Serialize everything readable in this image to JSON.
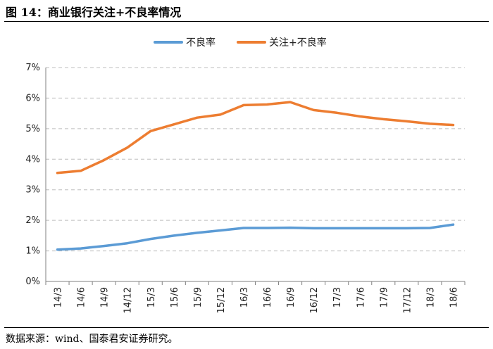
{
  "figure": {
    "title": "图 14：商业银行关注+不良率情况",
    "source": "数据来源：wind、国泰君安证券研究。"
  },
  "chart_data": {
    "type": "line",
    "title": "",
    "xlabel": "",
    "ylabel": "",
    "ylim": [
      0,
      7
    ],
    "y_ticks": [
      "0%",
      "1%",
      "2%",
      "3%",
      "4%",
      "5%",
      "6%",
      "7%"
    ],
    "grid": true,
    "legend_position": "top-center",
    "categories": [
      "14/3",
      "14/6",
      "14/9",
      "14/12",
      "15/3",
      "15/6",
      "15/9",
      "15/12",
      "16/3",
      "16/6",
      "16/9",
      "16/12",
      "17/3",
      "17/6",
      "17/9",
      "17/12",
      "18/3",
      "18/6"
    ],
    "series": [
      {
        "name": "不良率",
        "color": "#5b9bd5",
        "values": [
          1.04,
          1.08,
          1.16,
          1.25,
          1.39,
          1.5,
          1.59,
          1.67,
          1.75,
          1.75,
          1.76,
          1.74,
          1.74,
          1.74,
          1.74,
          1.74,
          1.75,
          1.86
        ]
      },
      {
        "name": "关注+不良率",
        "color": "#ed7d31",
        "values": [
          3.55,
          3.62,
          3.97,
          4.38,
          4.92,
          5.14,
          5.36,
          5.46,
          5.77,
          5.79,
          5.87,
          5.61,
          5.52,
          5.4,
          5.31,
          5.24,
          5.16,
          5.12
        ]
      }
    ]
  }
}
